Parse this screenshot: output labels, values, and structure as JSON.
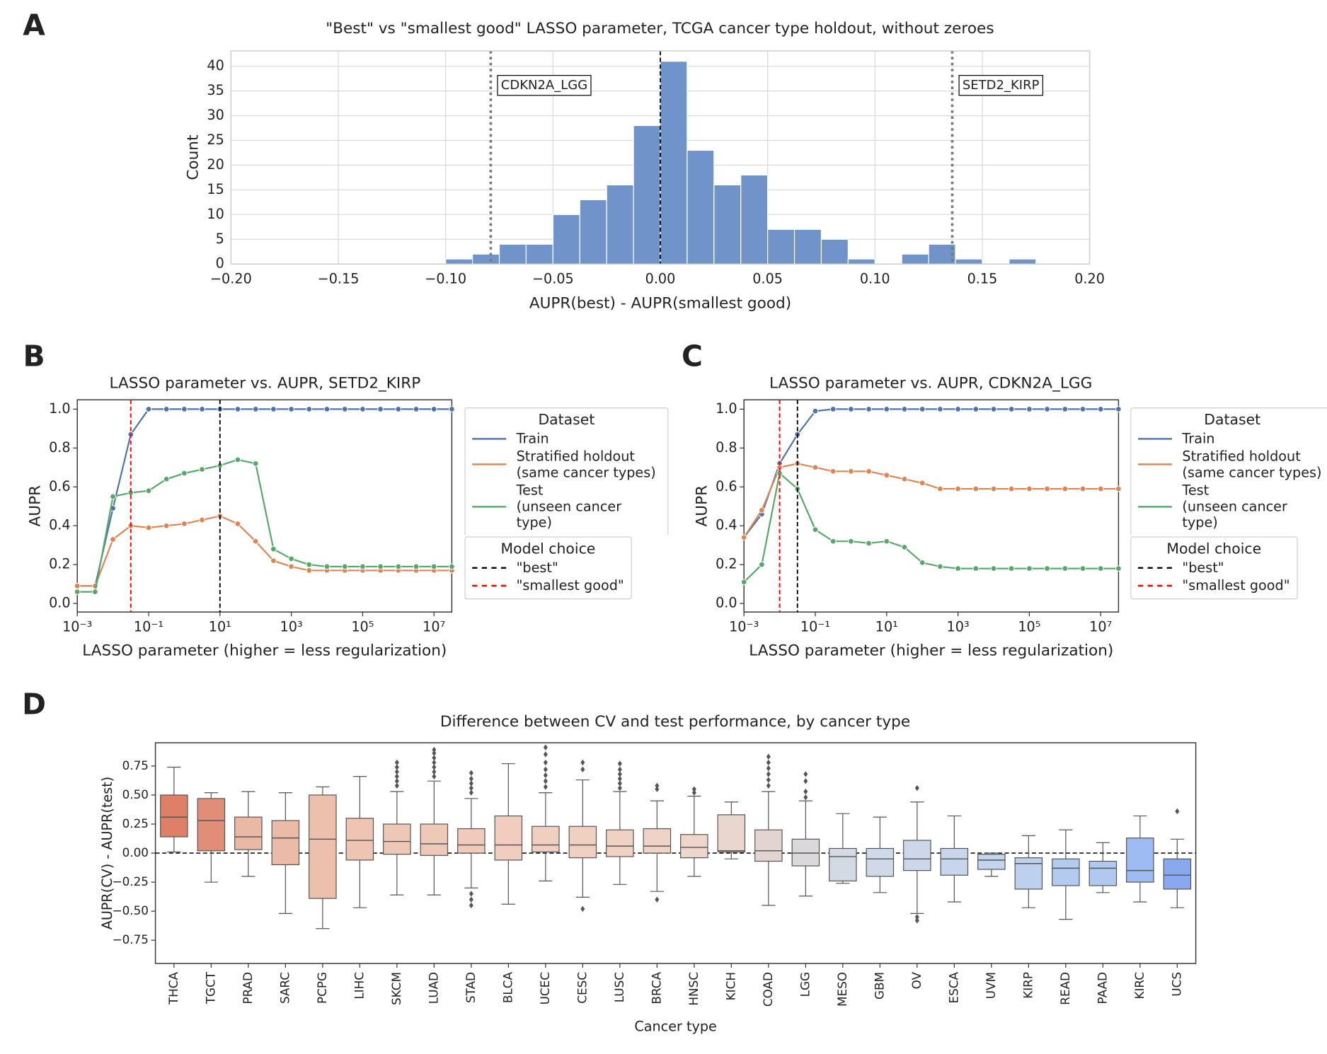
{
  "chart_data": [
    {
      "type": "histogram",
      "panel_label": "A",
      "title": "\"Best\" vs \"smallest good\" LASSO parameter, TCGA cancer type holdout, without zeroes",
      "x_label": "AUPR(best) - AUPR(smallest good)",
      "y_label": "Count",
      "bins": [
        -0.1,
        -0.0875,
        -0.075,
        -0.0625,
        -0.05,
        -0.0375,
        -0.025,
        -0.0125,
        0,
        0.0125,
        0.025,
        0.0375,
        0.05,
        0.0625,
        0.075,
        0.0875,
        0.1,
        0.1125,
        0.125,
        0.1375,
        0.15,
        0.1625,
        0.175
      ],
      "counts": [
        1,
        2,
        4,
        4,
        10,
        13,
        16,
        28,
        41,
        23,
        16,
        18,
        7,
        7,
        5,
        1,
        0,
        2,
        4,
        1,
        0,
        1
      ],
      "color": "#7094c9",
      "xlim": [
        -0.2,
        0.2
      ],
      "xticks": [
        {
          "value": -0.2,
          "label": "−0.20"
        },
        {
          "value": -0.15,
          "label": "−0.15"
        },
        {
          "value": -0.1,
          "label": "−0.10"
        },
        {
          "value": -0.05,
          "label": "−0.05"
        },
        {
          "value": 0,
          "label": "0.00"
        },
        0.05,
        {
          "value": 0.1,
          "label": "0.10"
        },
        0.15,
        {
          "value": 0.2,
          "label": "0.20"
        }
      ],
      "ylim": [
        0,
        43.1
      ],
      "yticks": [
        0,
        5,
        10,
        15,
        20,
        25,
        30,
        35,
        40
      ],
      "grid": true,
      "reference_x": 0,
      "annotations": [
        {
          "text": "CDKN2A_LGG",
          "x": -0.079
        },
        {
          "text": "SETD2_KIRP",
          "x": 0.136
        }
      ]
    },
    {
      "type": "line",
      "panel_label": "B",
      "title": "LASSO parameter vs. AUPR, SETD2_KIRP",
      "x_label": "LASSO parameter (higher = less regularization)",
      "y_label": "AUPR",
      "x_scale": "log",
      "x": [
        0.001,
        0.00316,
        0.01,
        0.0316,
        0.1,
        0.316,
        1,
        3.16,
        10,
        31.6,
        100,
        316,
        1000,
        3160,
        10000,
        31600,
        100000,
        316000,
        1000000,
        3160000,
        10000000,
        31600000
      ],
      "series": [
        {
          "name": "Train",
          "color": "#4c72b0",
          "values": [
            0.09,
            0.09,
            0.49,
            0.87,
            1.0,
            1.0,
            1.0,
            1.0,
            1.0,
            1.0,
            1.0,
            1.0,
            1.0,
            1.0,
            1.0,
            1.0,
            1.0,
            1.0,
            1.0,
            1.0,
            1.0,
            1.0
          ]
        },
        {
          "name": "Stratified holdout\n(same cancer types)",
          "color": "#dd8452",
          "values": [
            0.09,
            0.09,
            0.33,
            0.4,
            0.39,
            0.4,
            0.41,
            0.43,
            0.45,
            0.41,
            0.32,
            0.22,
            0.19,
            0.17,
            0.17,
            0.17,
            0.17,
            0.17,
            0.17,
            0.17,
            0.17,
            0.17
          ]
        },
        {
          "name": "Test\n(unseen cancer type)",
          "color": "#55a868",
          "values": [
            0.06,
            0.06,
            0.55,
            0.57,
            0.58,
            0.64,
            0.67,
            0.69,
            0.71,
            0.74,
            0.72,
            0.28,
            0.23,
            0.2,
            0.19,
            0.19,
            0.19,
            0.19,
            0.19,
            0.19,
            0.19,
            0.19
          ]
        }
      ],
      "legend_title": "Dataset",
      "vlines_title": "Model choice",
      "vlines": [
        {
          "name": "\"best\"",
          "x": 10,
          "color": "#000000"
        },
        {
          "name": "\"smallest good\"",
          "x": 0.0316,
          "color": "#ff0000"
        }
      ],
      "xlim": [
        0.001,
        31600000
      ],
      "xticks": [
        {
          "value": 0.001,
          "label": "10⁻³"
        },
        {
          "value": 0.1,
          "label": "10⁻¹"
        },
        {
          "value": 10,
          "label": "10¹"
        },
        {
          "value": 1000,
          "label": "10³"
        },
        {
          "value": 100000,
          "label": "10⁵"
        },
        {
          "value": 10000000,
          "label": "10⁷"
        }
      ],
      "ylim": [
        -0.044,
        1.048
      ],
      "yticks": [
        {
          "value": 0,
          "label": "0.0"
        },
        0.2,
        0.4,
        0.6,
        0.8,
        {
          "value": 1,
          "label": "1.0"
        }
      ],
      "grid": false
    },
    {
      "type": "line",
      "panel_label": "C",
      "title": "LASSO parameter vs. AUPR, CDKN2A_LGG",
      "x_label": "LASSO parameter (higher = less regularization)",
      "y_label": "AUPR",
      "x_scale": "log",
      "x": [
        0.001,
        0.00316,
        0.01,
        0.0316,
        0.1,
        0.316,
        1,
        3.16,
        10,
        31.6,
        100,
        316,
        1000,
        3160,
        10000,
        31600,
        100000,
        316000,
        1000000,
        3160000,
        10000000,
        31600000
      ],
      "series": [
        {
          "name": "Train",
          "color": "#4c72b0",
          "values": [
            0.34,
            0.46,
            0.72,
            0.87,
            0.99,
            1.0,
            1.0,
            1.0,
            1.0,
            1.0,
            1.0,
            1.0,
            1.0,
            1.0,
            1.0,
            1.0,
            1.0,
            1.0,
            1.0,
            1.0,
            1.0,
            1.0
          ]
        },
        {
          "name": "Stratified holdout\n(same cancer types)",
          "color": "#dd8452",
          "values": [
            0.34,
            0.48,
            0.7,
            0.72,
            0.7,
            0.68,
            0.68,
            0.68,
            0.66,
            0.64,
            0.62,
            0.59,
            0.59,
            0.59,
            0.59,
            0.59,
            0.59,
            0.59,
            0.59,
            0.59,
            0.59,
            0.59
          ]
        },
        {
          "name": "Test\n(unseen cancer type)",
          "color": "#55a868",
          "values": [
            0.11,
            0.2,
            0.67,
            0.59,
            0.38,
            0.32,
            0.32,
            0.31,
            0.32,
            0.29,
            0.21,
            0.19,
            0.18,
            0.18,
            0.18,
            0.18,
            0.18,
            0.18,
            0.18,
            0.18,
            0.18,
            0.18
          ]
        }
      ],
      "legend_title": "Dataset",
      "vlines_title": "Model choice",
      "vlines": [
        {
          "name": "\"best\"",
          "x": 0.0316,
          "color": "#000000"
        },
        {
          "name": "\"smallest good\"",
          "x": 0.01,
          "color": "#ff0000"
        }
      ],
      "xlim": [
        0.001,
        31600000
      ],
      "xticks": [
        {
          "value": 0.001,
          "label": "10⁻³"
        },
        {
          "value": 0.1,
          "label": "10⁻¹"
        },
        {
          "value": 10,
          "label": "10¹"
        },
        {
          "value": 1000,
          "label": "10³"
        },
        {
          "value": 100000,
          "label": "10⁵"
        },
        {
          "value": 10000000,
          "label": "10⁷"
        }
      ],
      "ylim": [
        -0.044,
        1.048
      ],
      "yticks": [
        {
          "value": 0,
          "label": "0.0"
        },
        0.2,
        0.4,
        0.6,
        0.8,
        {
          "value": 1,
          "label": "1.0"
        }
      ],
      "grid": false
    },
    {
      "type": "box",
      "panel_label": "D",
      "title": "Difference between CV and test performance, by cancer type",
      "x_label": "Cancer type",
      "y_label": "AUPR(CV) - AUPR(test)",
      "categories": [
        "THCA",
        "TGCT",
        "PRAD",
        "SARC",
        "PCPG",
        "LIHC",
        "SKCM",
        "LUAD",
        "STAD",
        "BLCA",
        "UCEC",
        "CESC",
        "LUSC",
        "BRCA",
        "HNSC",
        "KICH",
        "COAD",
        "LGG",
        "MESO",
        "GBM",
        "OV",
        "ESCA",
        "UVM",
        "KIRP",
        "READ",
        "PAAD",
        "KIRC",
        "UCS"
      ],
      "colors": [
        "#dd8067",
        "#e08e77",
        "#eab8a4",
        "#ebbba8",
        "#edc0ad",
        "#eec4b2",
        "#efc7b6",
        "#efc9b8",
        "#f0cbbb",
        "#f0cdbe",
        "#f0cfc0",
        "#f0d0c2",
        "#f0d2c4",
        "#efd3c7",
        "#eed6ca",
        "#e9d6ce",
        "#e2d4cf",
        "#dbd8dc",
        "#d3dae4",
        "#cfd9e7",
        "#ccd8e9",
        "#c7d6eb",
        "#c4d4ec",
        "#bdd0ee",
        "#b3cbf0",
        "#b0c9f0",
        "#9ebcf3",
        "#86a9f0"
      ],
      "boxes": [
        {
          "whislo": 0.01,
          "q1": 0.14,
          "median": 0.31,
          "q3": 0.5,
          "whishi": 0.74,
          "fliers": []
        },
        {
          "whislo": -0.25,
          "q1": 0.02,
          "median": 0.28,
          "q3": 0.47,
          "whishi": 0.52,
          "fliers": []
        },
        {
          "whislo": -0.2,
          "q1": 0.03,
          "median": 0.14,
          "q3": 0.31,
          "whishi": 0.53,
          "fliers": []
        },
        {
          "whislo": -0.52,
          "q1": -0.1,
          "median": 0.13,
          "q3": 0.28,
          "whishi": 0.52,
          "fliers": []
        },
        {
          "whislo": -0.65,
          "q1": -0.39,
          "median": 0.12,
          "q3": 0.5,
          "whishi": 0.57,
          "fliers": []
        },
        {
          "whislo": -0.47,
          "q1": -0.06,
          "median": 0.11,
          "q3": 0.3,
          "whishi": 0.66,
          "fliers": []
        },
        {
          "whislo": -0.36,
          "q1": -0.01,
          "median": 0.1,
          "q3": 0.25,
          "whishi": 0.53,
          "fliers": [
            0.58,
            0.62,
            0.66,
            0.7,
            0.74,
            0.78
          ]
        },
        {
          "whislo": -0.36,
          "q1": -0.02,
          "median": 0.08,
          "q3": 0.25,
          "whishi": 0.62,
          "fliers": [
            0.66,
            0.7,
            0.74,
            0.78,
            0.82,
            0.86,
            0.89
          ]
        },
        {
          "whislo": -0.3,
          "q1": 0.0,
          "median": 0.07,
          "q3": 0.21,
          "whishi": 0.47,
          "fliers": [
            0.52,
            0.56,
            0.6,
            0.64,
            0.69,
            -0.35,
            -0.4,
            -0.45
          ]
        },
        {
          "whislo": -0.44,
          "q1": -0.06,
          "median": 0.07,
          "q3": 0.32,
          "whishi": 0.77,
          "fliers": []
        },
        {
          "whislo": -0.24,
          "q1": 0.01,
          "median": 0.07,
          "q3": 0.23,
          "whishi": 0.52,
          "fliers": [
            0.57,
            0.62,
            0.67,
            0.72,
            0.78,
            0.85,
            0.91
          ]
        },
        {
          "whislo": -0.38,
          "q1": -0.04,
          "median": 0.07,
          "q3": 0.23,
          "whishi": 0.63,
          "fliers": [
            0.72,
            0.78,
            -0.48
          ]
        },
        {
          "whislo": -0.27,
          "q1": -0.03,
          "median": 0.06,
          "q3": 0.2,
          "whishi": 0.53,
          "fliers": [
            0.56,
            0.6,
            0.64,
            0.68,
            0.72,
            0.77
          ]
        },
        {
          "whislo": -0.33,
          "q1": 0.0,
          "median": 0.06,
          "q3": 0.21,
          "whishi": 0.45,
          "fliers": [
            0.55,
            0.58,
            -0.4
          ]
        },
        {
          "whislo": -0.2,
          "q1": -0.04,
          "median": 0.05,
          "q3": 0.16,
          "whishi": 0.49,
          "fliers": [
            0.52,
            0.55
          ]
        },
        {
          "whislo": -0.05,
          "q1": 0.01,
          "median": 0.02,
          "q3": 0.33,
          "whishi": 0.44,
          "fliers": []
        },
        {
          "whislo": -0.45,
          "q1": -0.07,
          "median": 0.02,
          "q3": 0.2,
          "whishi": 0.53,
          "fliers": [
            0.58,
            0.63,
            0.68,
            0.73,
            0.78,
            0.83
          ]
        },
        {
          "whislo": -0.37,
          "q1": -0.11,
          "median": 0.0,
          "q3": 0.12,
          "whishi": 0.45,
          "fliers": [
            0.48,
            0.53,
            0.62,
            0.68
          ]
        },
        {
          "whislo": -0.26,
          "q1": -0.24,
          "median": -0.03,
          "q3": 0.04,
          "whishi": 0.34,
          "fliers": []
        },
        {
          "whislo": -0.34,
          "q1": -0.2,
          "median": -0.05,
          "q3": 0.04,
          "whishi": 0.31,
          "fliers": []
        },
        {
          "whislo": -0.52,
          "q1": -0.15,
          "median": -0.05,
          "q3": 0.11,
          "whishi": 0.44,
          "fliers": [
            0.56,
            -0.55,
            -0.58
          ]
        },
        {
          "whislo": -0.42,
          "q1": -0.19,
          "median": -0.05,
          "q3": 0.04,
          "whishi": 0.32,
          "fliers": []
        },
        {
          "whislo": -0.2,
          "q1": -0.14,
          "median": -0.06,
          "q3": -0.01,
          "whishi": 0.0,
          "fliers": []
        },
        {
          "whislo": -0.47,
          "q1": -0.31,
          "median": -0.09,
          "q3": -0.04,
          "whishi": 0.15,
          "fliers": []
        },
        {
          "whislo": -0.57,
          "q1": -0.28,
          "median": -0.13,
          "q3": -0.05,
          "whishi": 0.2,
          "fliers": []
        },
        {
          "whislo": -0.34,
          "q1": -0.28,
          "median": -0.13,
          "q3": -0.07,
          "whishi": 0.09,
          "fliers": []
        },
        {
          "whislo": -0.42,
          "q1": -0.25,
          "median": -0.15,
          "q3": 0.13,
          "whishi": 0.32,
          "fliers": []
        },
        {
          "whislo": -0.47,
          "q1": -0.31,
          "median": -0.19,
          "q3": -0.05,
          "whishi": 0.12,
          "fliers": [
            0.36
          ]
        }
      ],
      "reference_y": 0,
      "ylim": [
        -0.95,
        0.95
      ],
      "yticks": [
        {
          "value": -0.75,
          "label": "−0.75"
        },
        {
          "value": -0.5,
          "label": "−0.50"
        },
        {
          "value": -0.25,
          "label": "−0.25"
        },
        {
          "value": 0,
          "label": "0.00"
        },
        0.25,
        {
          "value": 0.5,
          "label": "0.50"
        },
        0.75
      ],
      "grid": false
    }
  ]
}
